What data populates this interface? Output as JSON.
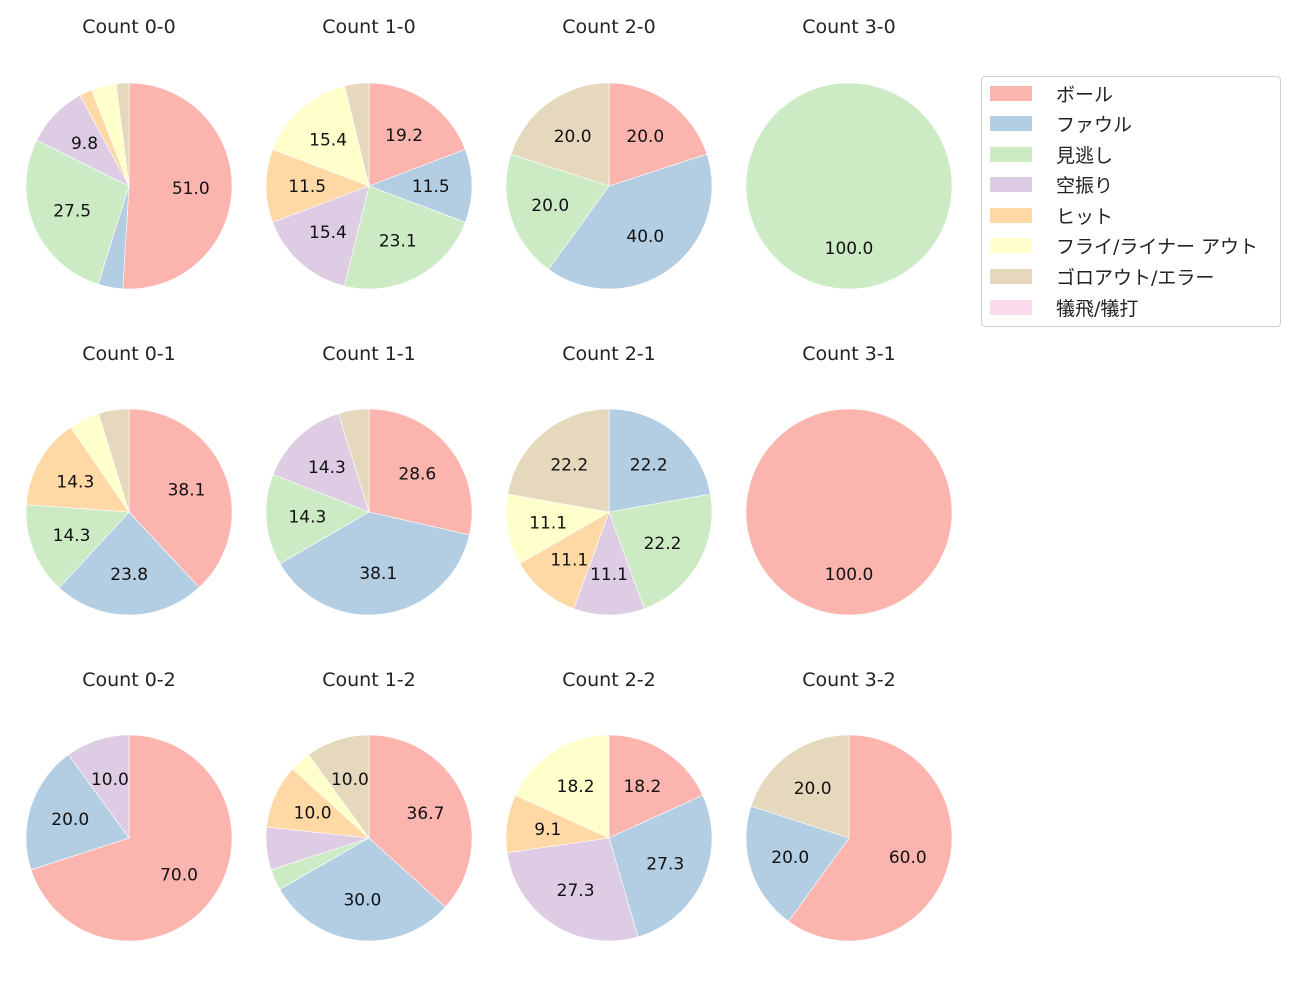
{
  "legend": {
    "items": [
      {
        "label": "ボール",
        "color": "#fbb4ae"
      },
      {
        "label": "ファウル",
        "color": "#b3cde3"
      },
      {
        "label": "見逃し",
        "color": "#ccebc5"
      },
      {
        "label": "空振り",
        "color": "#decbe4"
      },
      {
        "label": "ヒット",
        "color": "#fed9a6"
      },
      {
        "label": "フライ/ライナー アウト",
        "color": "#ffffcc"
      },
      {
        "label": "ゴロアウト/エラー",
        "color": "#e5d8bd"
      },
      {
        "label": "犠飛/犠打",
        "color": "#fddaec"
      }
    ]
  },
  "chart_data": [
    {
      "type": "pie",
      "title": "Count 0-0",
      "categories": [
        "ボール",
        "ファウル",
        "見逃し",
        "空振り",
        "ヒット",
        "フライ/ライナー アウト",
        "ゴロアウト/エラー",
        "犠飛/犠打"
      ],
      "values": [
        51.0,
        3.9,
        27.5,
        9.8,
        2.0,
        3.9,
        2.0,
        0
      ],
      "labels": [
        "51.0",
        "",
        "27.5",
        "9.8",
        "",
        "",
        "",
        ""
      ]
    },
    {
      "type": "pie",
      "title": "Count 1-0",
      "categories": [
        "ボール",
        "ファウル",
        "見逃し",
        "空振り",
        "ヒット",
        "フライ/ライナー アウト",
        "ゴロアウト/エラー",
        "犠飛/犠打"
      ],
      "values": [
        19.2,
        11.5,
        23.1,
        15.4,
        11.5,
        15.4,
        3.8,
        0
      ],
      "labels": [
        "19.2",
        "11.5",
        "23.1",
        "15.4",
        "11.5",
        "15.4",
        "",
        ""
      ]
    },
    {
      "type": "pie",
      "title": "Count 2-0",
      "categories": [
        "ボール",
        "ファウル",
        "見逃し",
        "空振り",
        "ヒット",
        "フライ/ライナー アウト",
        "ゴロアウト/エラー",
        "犠飛/犠打"
      ],
      "values": [
        20.0,
        40.0,
        20.0,
        0,
        0,
        0,
        20.0,
        0
      ],
      "labels": [
        "20.0",
        "40.0",
        "20.0",
        "",
        "",
        "",
        "20.0",
        ""
      ]
    },
    {
      "type": "pie",
      "title": "Count 3-0",
      "categories": [
        "ボール",
        "ファウル",
        "見逃し",
        "空振り",
        "ヒット",
        "フライ/ライナー アウト",
        "ゴロアウト/エラー",
        "犠飛/犠打"
      ],
      "values": [
        0,
        0,
        100.0,
        0,
        0,
        0,
        0,
        0
      ],
      "labels": [
        "",
        "",
        "100.0",
        "",
        "",
        "",
        "",
        ""
      ]
    },
    {
      "type": "pie",
      "title": "Count 0-1",
      "categories": [
        "ボール",
        "ファウル",
        "見逃し",
        "空振り",
        "ヒット",
        "フライ/ライナー アウト",
        "ゴロアウト/エラー",
        "犠飛/犠打"
      ],
      "values": [
        38.1,
        23.8,
        14.3,
        0,
        14.3,
        4.8,
        4.8,
        0
      ],
      "labels": [
        "38.1",
        "23.8",
        "14.3",
        "",
        "14.3",
        "",
        "",
        ""
      ]
    },
    {
      "type": "pie",
      "title": "Count 1-1",
      "categories": [
        "ボール",
        "ファウル",
        "見逃し",
        "空振り",
        "ヒット",
        "フライ/ライナー アウト",
        "ゴロアウト/エラー",
        "犠飛/犠打"
      ],
      "values": [
        28.6,
        38.1,
        14.3,
        14.3,
        0,
        0,
        4.8,
        0
      ],
      "labels": [
        "28.6",
        "38.1",
        "14.3",
        "14.3",
        "",
        "",
        "",
        ""
      ]
    },
    {
      "type": "pie",
      "title": "Count 2-1",
      "categories": [
        "ボール",
        "ファウル",
        "見逃し",
        "空振り",
        "ヒット",
        "フライ/ライナー アウト",
        "ゴロアウト/エラー",
        "犠飛/犠打"
      ],
      "values": [
        0,
        22.2,
        22.2,
        11.1,
        11.1,
        11.1,
        22.2,
        0
      ],
      "labels": [
        "",
        "22.2",
        "22.2",
        "11.1",
        "11.1",
        "11.1",
        "22.2",
        ""
      ]
    },
    {
      "type": "pie",
      "title": "Count 3-1",
      "categories": [
        "ボール",
        "ファウル",
        "見逃し",
        "空振り",
        "ヒット",
        "フライ/ライナー アウト",
        "ゴロアウト/エラー",
        "犠飛/犠打"
      ],
      "values": [
        100.0,
        0,
        0,
        0,
        0,
        0,
        0,
        0
      ],
      "labels": [
        "100.0",
        "",
        "",
        "",
        "",
        "",
        "",
        ""
      ]
    },
    {
      "type": "pie",
      "title": "Count 0-2",
      "categories": [
        "ボール",
        "ファウル",
        "見逃し",
        "空振り",
        "ヒット",
        "フライ/ライナー アウト",
        "ゴロアウト/エラー",
        "犠飛/犠打"
      ],
      "values": [
        70.0,
        20.0,
        0,
        10.0,
        0,
        0,
        0,
        0
      ],
      "labels": [
        "70.0",
        "20.0",
        "",
        "10.0",
        "",
        "",
        "",
        ""
      ]
    },
    {
      "type": "pie",
      "title": "Count 1-2",
      "categories": [
        "ボール",
        "ファウル",
        "見逃し",
        "空振り",
        "ヒット",
        "フライ/ライナー アウト",
        "ゴロアウト/エラー",
        "犠飛/犠打"
      ],
      "values": [
        36.7,
        30.0,
        3.3,
        6.7,
        10.0,
        3.3,
        10.0,
        0
      ],
      "labels": [
        "36.7",
        "30.0",
        "",
        "",
        "10.0",
        "",
        "10.0",
        ""
      ]
    },
    {
      "type": "pie",
      "title": "Count 2-2",
      "categories": [
        "ボール",
        "ファウル",
        "見逃し",
        "空振り",
        "ヒット",
        "フライ/ライナー アウト",
        "ゴロアウト/エラー",
        "犠飛/犠打"
      ],
      "values": [
        18.2,
        27.3,
        0,
        27.3,
        9.1,
        18.2,
        0,
        0
      ],
      "labels": [
        "18.2",
        "27.3",
        "",
        "27.3",
        "9.1",
        "18.2",
        "",
        ""
      ]
    },
    {
      "type": "pie",
      "title": "Count 3-2",
      "categories": [
        "ボール",
        "ファウル",
        "見逃し",
        "空振り",
        "ヒット",
        "フライ/ライナー アウト",
        "ゴロアウト/エラー",
        "犠飛/犠打"
      ],
      "values": [
        60.0,
        20.0,
        0,
        0,
        0,
        0,
        20.0,
        0
      ],
      "labels": [
        "60.0",
        "20.0",
        "",
        "",
        "",
        "",
        "20.0",
        ""
      ]
    }
  ]
}
